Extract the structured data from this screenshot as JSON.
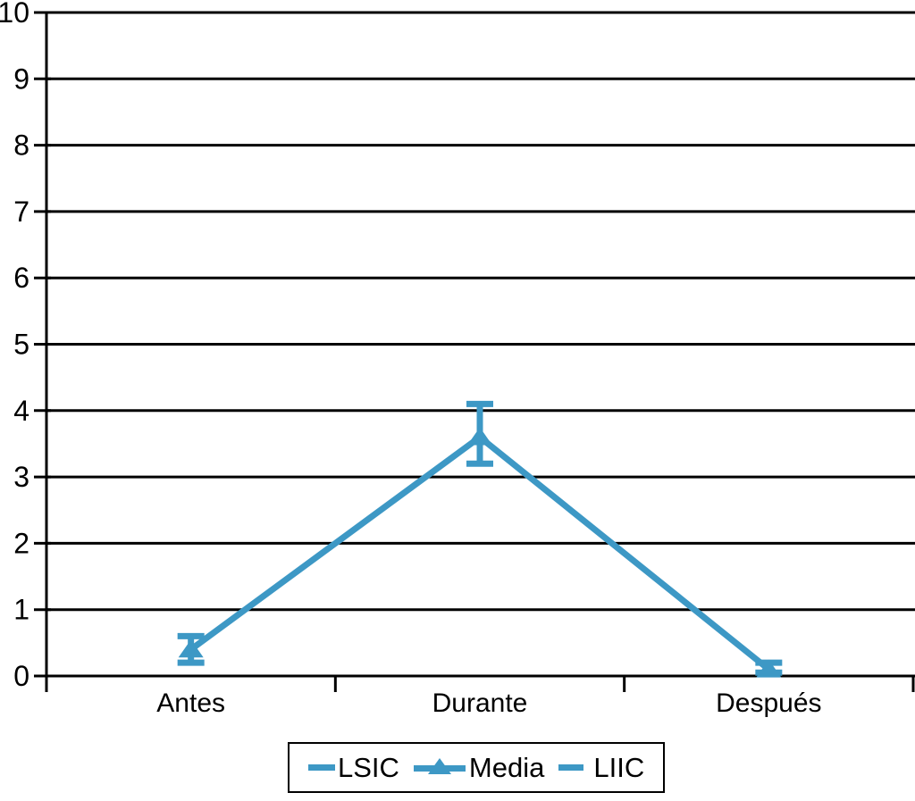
{
  "chart_data": {
    "type": "line",
    "title": "",
    "xlabel": "",
    "ylabel": "",
    "categories": [
      "Antes",
      "Durante",
      "Después"
    ],
    "series": [
      {
        "name": "LSIC",
        "role": "upper-confidence-limit",
        "values": [
          0.6,
          4.1,
          0.2
        ]
      },
      {
        "name": "Media",
        "role": "mean",
        "values": [
          0.4,
          3.6,
          0.1
        ]
      },
      {
        "name": "LIIC",
        "role": "lower-confidence-limit",
        "values": [
          0.2,
          3.2,
          0.05
        ]
      }
    ],
    "ylim": [
      0,
      10
    ],
    "yticks": [
      0,
      1,
      2,
      3,
      4,
      5,
      6,
      7,
      8,
      9,
      10
    ],
    "grid": "horizontal",
    "legend_position": "bottom",
    "marker": "triangle-up",
    "line_color": "#3d98c5",
    "axis_color": "#000000",
    "background_color": "#ffffff"
  }
}
